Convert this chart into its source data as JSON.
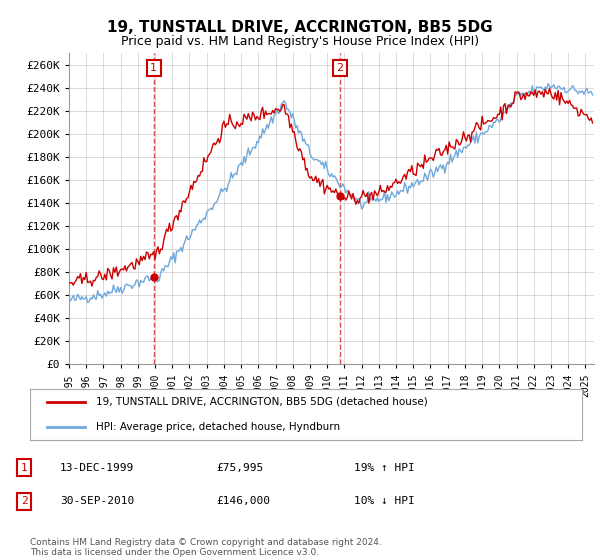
{
  "title": "19, TUNSTALL DRIVE, ACCRINGTON, BB5 5DG",
  "subtitle": "Price paid vs. HM Land Registry's House Price Index (HPI)",
  "ylim": [
    0,
    270000
  ],
  "yticks": [
    0,
    20000,
    40000,
    60000,
    80000,
    100000,
    120000,
    140000,
    160000,
    180000,
    200000,
    220000,
    240000,
    260000
  ],
  "sale1_year": 1999.92,
  "sale1_price": 75995,
  "sale1_label": "1",
  "sale1_hpi": "19% ↑ HPI",
  "sale1_date_text": "13-DEC-1999",
  "sale1_price_text": "£75,995",
  "sale2_year": 2010.75,
  "sale2_price": 146000,
  "sale2_label": "2",
  "sale2_hpi": "10% ↓ HPI",
  "sale2_date_text": "30-SEP-2010",
  "sale2_price_text": "£146,000",
  "hpi_color": "#6fa8dc",
  "price_color": "#cc0000",
  "legend_label1": "19, TUNSTALL DRIVE, ACCRINGTON, BB5 5DG (detached house)",
  "legend_label2": "HPI: Average price, detached house, Hyndburn",
  "footer": "Contains HM Land Registry data © Crown copyright and database right 2024.\nThis data is licensed under the Open Government Licence v3.0.",
  "background_color": "#ffffff",
  "grid_color": "#cccccc",
  "annotation_box_color": "#cc0000",
  "xlim_start": 1995,
  "xlim_end": 2025.5
}
